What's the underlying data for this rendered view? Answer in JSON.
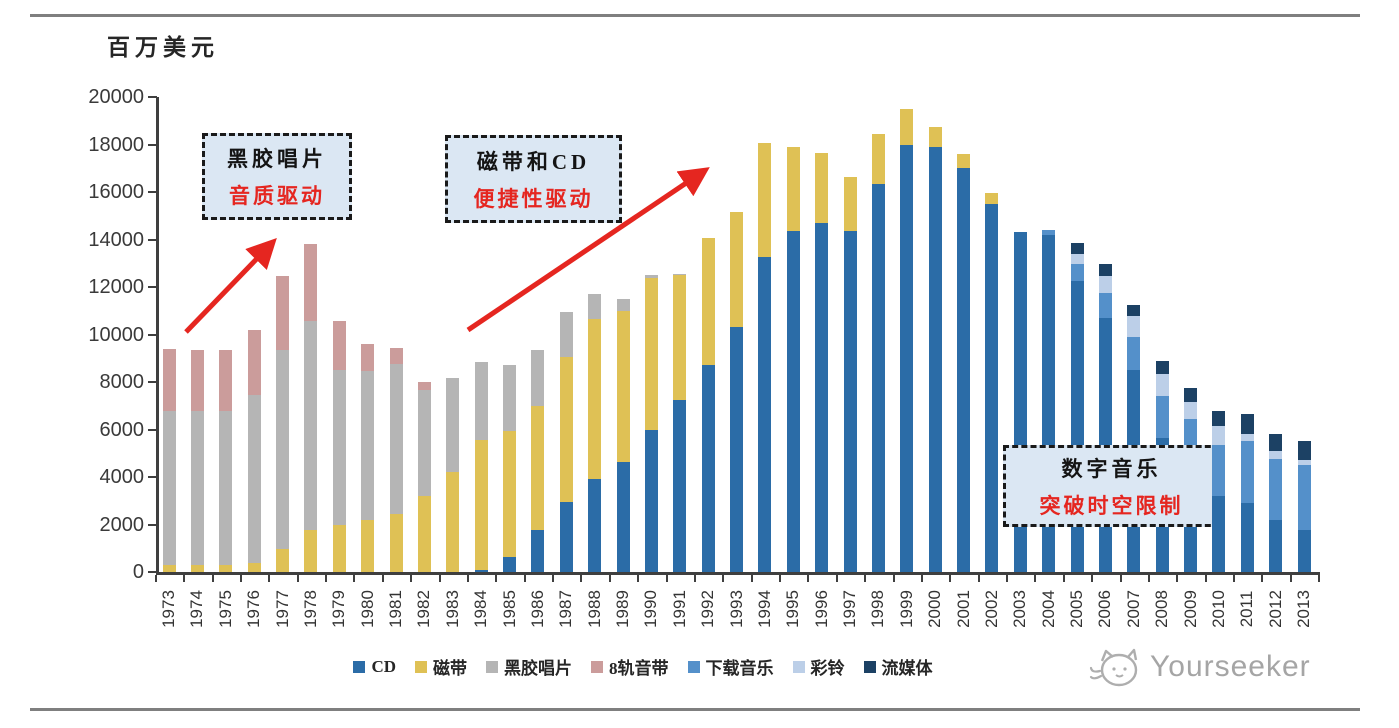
{
  "header": {
    "unit_label": "百万美元"
  },
  "watermark": {
    "text": "Yourseeker"
  },
  "annotations": [
    {
      "title": "黑胶唱片",
      "subtitle": "音质驱动"
    },
    {
      "title": "磁带和CD",
      "subtitle": "便捷性驱动"
    },
    {
      "title": "数字音乐",
      "subtitle": "突破时空限制"
    }
  ],
  "colors": {
    "accent_red": "#e52620",
    "annotation_fill": "#dbe7f3",
    "axis": "#3f3f3f",
    "rule_gray": "#7f7f7f",
    "watermark_gray": "#a5a5a5"
  },
  "chart_data": {
    "type": "bar",
    "stacked": true,
    "title": "",
    "ylabel": "百万美元",
    "xlabel": "",
    "unit": "million USD",
    "ylim": [
      0,
      20000
    ],
    "ytick_step": 2000,
    "yticks": [
      0,
      2000,
      4000,
      6000,
      8000,
      10000,
      12000,
      14000,
      16000,
      18000,
      20000
    ],
    "grid": false,
    "legend_position": "bottom",
    "categories": [
      1973,
      1974,
      1975,
      1976,
      1977,
      1978,
      1979,
      1980,
      1981,
      1982,
      1983,
      1984,
      1985,
      1986,
      1987,
      1988,
      1989,
      1990,
      1991,
      1992,
      1993,
      1994,
      1995,
      1996,
      1997,
      1998,
      1999,
      2000,
      2001,
      2002,
      2003,
      2004,
      2005,
      2006,
      2007,
      2008,
      2009,
      2010,
      2011,
      2012,
      2013
    ],
    "series": [
      {
        "name": "CD",
        "color": "#2b6ca7",
        "values": [
          0,
          0,
          0,
          0,
          0,
          0,
          0,
          0,
          0,
          0,
          0,
          100,
          650,
          1750,
          2950,
          3900,
          4650,
          6000,
          7250,
          8700,
          10300,
          13250,
          14350,
          14700,
          14350,
          16350,
          18000,
          17900,
          17000,
          15500,
          14300,
          14200,
          12250,
          10700,
          8500,
          5650,
          4900,
          3200,
          2900,
          2200,
          1750
        ]
      },
      {
        "name": "磁带",
        "color": "#dfc155",
        "values": [
          300,
          300,
          300,
          400,
          950,
          1750,
          2000,
          2200,
          2450,
          3200,
          4200,
          5450,
          5300,
          5250,
          6100,
          6750,
          6350,
          6400,
          5250,
          5350,
          4850,
          4800,
          3550,
          2950,
          2300,
          2100,
          1500,
          850,
          600,
          450,
          0,
          0,
          0,
          0,
          0,
          0,
          0,
          0,
          0,
          0,
          0
        ]
      },
      {
        "name": "黑胶唱片",
        "color": "#b5b5b5",
        "values": [
          6500,
          6500,
          6500,
          7050,
          8400,
          8800,
          6500,
          6250,
          6300,
          4450,
          3950,
          3300,
          2750,
          2350,
          1900,
          1050,
          500,
          100,
          50,
          0,
          0,
          0,
          0,
          0,
          0,
          0,
          0,
          0,
          0,
          0,
          0,
          0,
          0,
          0,
          0,
          0,
          0,
          0,
          0,
          0,
          0
        ]
      },
      {
        "name": "8轨音带",
        "color": "#cb9c9b",
        "values": [
          2600,
          2550,
          2550,
          2750,
          3100,
          3250,
          2050,
          1150,
          700,
          350,
          0,
          0,
          0,
          0,
          0,
          0,
          0,
          0,
          0,
          0,
          0,
          0,
          0,
          0,
          0,
          0,
          0,
          0,
          0,
          0,
          0,
          0,
          0,
          0,
          0,
          0,
          0,
          0,
          0,
          0,
          0
        ]
      },
      {
        "name": "下载音乐",
        "color": "#5490ca",
        "values": [
          0,
          0,
          0,
          0,
          0,
          0,
          0,
          0,
          0,
          0,
          0,
          0,
          0,
          0,
          0,
          0,
          0,
          0,
          0,
          0,
          0,
          0,
          0,
          0,
          0,
          0,
          0,
          0,
          0,
          0,
          0,
          200,
          700,
          1050,
          1400,
          1750,
          1550,
          2150,
          2600,
          2550,
          2750
        ]
      },
      {
        "name": "彩铃",
        "color": "#bccfe8",
        "values": [
          0,
          0,
          0,
          0,
          0,
          0,
          0,
          0,
          0,
          0,
          0,
          0,
          0,
          0,
          0,
          0,
          0,
          0,
          0,
          0,
          0,
          0,
          0,
          0,
          0,
          0,
          0,
          0,
          0,
          0,
          0,
          0,
          450,
          700,
          900,
          950,
          725,
          800,
          300,
          350,
          200
        ]
      },
      {
        "name": "流媒体",
        "color": "#1c4164",
        "values": [
          0,
          0,
          0,
          0,
          0,
          0,
          0,
          0,
          0,
          0,
          0,
          0,
          0,
          0,
          0,
          0,
          0,
          0,
          0,
          0,
          0,
          0,
          0,
          0,
          0,
          0,
          0,
          0,
          0,
          0,
          0,
          0,
          450,
          500,
          450,
          550,
          575,
          650,
          850,
          700,
          800
        ]
      }
    ]
  }
}
